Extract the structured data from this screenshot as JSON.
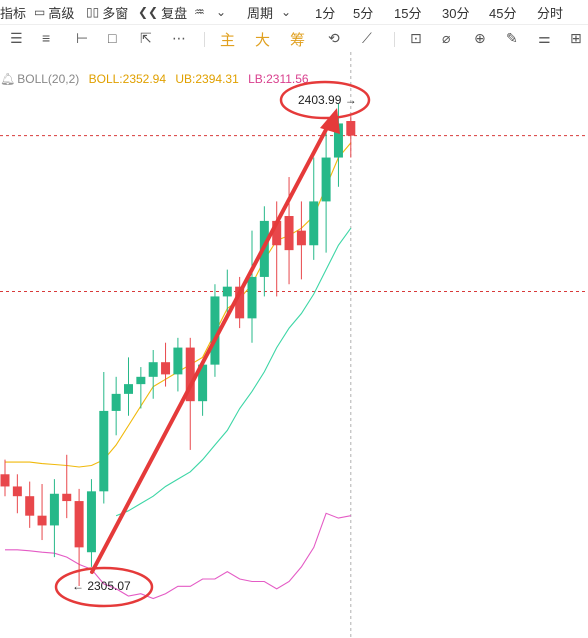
{
  "toolbar": {
    "items": [
      {
        "label": "指标",
        "icon": "",
        "icon_name": ""
      },
      {
        "label": "高级",
        "icon": "▭",
        "icon_name": "window-icon"
      },
      {
        "label": "多窗",
        "icon": "▯▯",
        "icon_name": "multi-window-icon"
      },
      {
        "label": "复盘",
        "icon": "❮❮",
        "icon_name": "rewind-icon"
      },
      {
        "label": "",
        "icon": "♒",
        "icon_name": "chart-type-icon"
      },
      {
        "label": "",
        "icon": "⌄",
        "icon_name": "chevron-down-icon"
      },
      {
        "label": "周期",
        "icon": "",
        "icon_name": ""
      },
      {
        "label": "",
        "icon": "⌄",
        "icon_name": "chevron-down-icon"
      },
      {
        "label": "1分",
        "icon": "",
        "icon_name": ""
      },
      {
        "label": "5分",
        "icon": "",
        "icon_name": ""
      },
      {
        "label": "15分",
        "icon": "",
        "icon_name": ""
      },
      {
        "label": "30分",
        "icon": "",
        "icon_name": ""
      },
      {
        "label": "45分",
        "icon": "",
        "icon_name": ""
      },
      {
        "label": "分时",
        "icon": "",
        "icon_name": ""
      }
    ],
    "draw_tools": {
      "tools": [
        {
          "glyph": "☰",
          "name": "menu-icon"
        },
        {
          "glyph": "≡",
          "name": "lines-icon"
        },
        {
          "glyph": "⊢",
          "name": "horizontal-line-icon"
        },
        {
          "glyph": "□",
          "name": "rectangle-icon"
        },
        {
          "glyph": "⇱",
          "name": "pointer-icon"
        },
        {
          "glyph": "⋯",
          "name": "more-icon"
        }
      ],
      "gold": [
        "主",
        "大",
        "筹"
      ],
      "right_tools": [
        {
          "glyph": "⟲",
          "name": "refresh-icon"
        },
        {
          "glyph": "⟋",
          "name": "ruler-icon"
        },
        {
          "glyph": "⊡",
          "name": "select-icon"
        },
        {
          "glyph": "⌀",
          "name": "measure-icon"
        },
        {
          "glyph": "⊕",
          "name": "zoom-icon"
        },
        {
          "glyph": "✎",
          "name": "pen-icon"
        },
        {
          "glyph": "⚌",
          "name": "candle-icon"
        },
        {
          "glyph": "⊞",
          "name": "grid-icon"
        }
      ]
    }
  },
  "legend": {
    "boll": "BOLL(20,2)",
    "mid": "BOLL:2352.94",
    "ub": "UB:2394.31",
    "lb": "LB:2311.56"
  },
  "annotations": {
    "high": "2403.99",
    "high_arrow": "→",
    "low": "2305.07",
    "low_arrow": "←"
  },
  "colors": {
    "up": "#26b889",
    "down": "#e8474b",
    "mid": "#f0b90b",
    "ub": "#3dd6a6",
    "lb": "#e45bc5",
    "annotation": "#e53a3a",
    "crosshair": "#d83a3a"
  },
  "chart_data": {
    "type": "candlestick",
    "title": "",
    "ylim": [
      2290,
      2420
    ],
    "candles": [
      {
        "o": 2328.0,
        "h": 2331.0,
        "l": 2323.5,
        "c": 2325.5
      },
      {
        "o": 2325.5,
        "h": 2328.0,
        "l": 2320.0,
        "c": 2323.5
      },
      {
        "o": 2323.5,
        "h": 2326.5,
        "l": 2317.0,
        "c": 2319.5
      },
      {
        "o": 2319.5,
        "h": 2326.0,
        "l": 2314.5,
        "c": 2317.5
      },
      {
        "o": 2317.5,
        "h": 2327.0,
        "l": 2311.0,
        "c": 2324.0
      },
      {
        "o": 2324.0,
        "h": 2332.0,
        "l": 2319.0,
        "c": 2322.5
      },
      {
        "o": 2322.5,
        "h": 2325.0,
        "l": 2305.07,
        "c": 2313.0
      },
      {
        "o": 2312.0,
        "h": 2327.0,
        "l": 2309.0,
        "c": 2324.5
      },
      {
        "o": 2324.5,
        "h": 2349.0,
        "l": 2322.0,
        "c": 2341.0
      },
      {
        "o": 2341.0,
        "h": 2348.0,
        "l": 2336.0,
        "c": 2344.5
      },
      {
        "o": 2344.5,
        "h": 2352.0,
        "l": 2340.0,
        "c": 2346.5
      },
      {
        "o": 2346.5,
        "h": 2350.0,
        "l": 2341.5,
        "c": 2348.0
      },
      {
        "o": 2348.0,
        "h": 2353.5,
        "l": 2343.5,
        "c": 2351.0
      },
      {
        "o": 2351.0,
        "h": 2355.0,
        "l": 2346.0,
        "c": 2348.5
      },
      {
        "o": 2348.5,
        "h": 2356.0,
        "l": 2345.0,
        "c": 2354.0
      },
      {
        "o": 2354.0,
        "h": 2356.0,
        "l": 2333.0,
        "c": 2343.0
      },
      {
        "o": 2343.0,
        "h": 2350.0,
        "l": 2340.0,
        "c": 2350.5
      },
      {
        "o": 2350.5,
        "h": 2367.0,
        "l": 2348.0,
        "c": 2364.5
      },
      {
        "o": 2364.5,
        "h": 2370.0,
        "l": 2361.0,
        "c": 2366.5
      },
      {
        "o": 2366.5,
        "h": 2368.5,
        "l": 2358.0,
        "c": 2360.0
      },
      {
        "o": 2360.0,
        "h": 2378.0,
        "l": 2355.0,
        "c": 2368.5
      },
      {
        "o": 2368.5,
        "h": 2383.0,
        "l": 2364.5,
        "c": 2380.0
      },
      {
        "o": 2380.0,
        "h": 2384.0,
        "l": 2364.5,
        "c": 2375.0
      },
      {
        "o": 2381.0,
        "h": 2389.0,
        "l": 2367.0,
        "c": 2374.0
      },
      {
        "o": 2378.0,
        "h": 2384.0,
        "l": 2368.0,
        "c": 2375.0
      },
      {
        "o": 2375.0,
        "h": 2393.0,
        "l": 2372.0,
        "c": 2384.0
      },
      {
        "o": 2384.0,
        "h": 2400.0,
        "l": 2373.5,
        "c": 2393.0
      },
      {
        "o": 2393.0,
        "h": 2403.99,
        "l": 2387.0,
        "c": 2400.0
      },
      {
        "o": 2400.5,
        "h": 2401.5,
        "l": 2393.0,
        "c": 2397.5
      }
    ],
    "mid": [
      2330.5,
      2330.5,
      2330.5,
      2330.2,
      2330.0,
      2329.8,
      2329.5,
      2329.8,
      2331.0,
      2334.0,
      2338.0,
      2342.0,
      2346.0,
      2347.5,
      2349.0,
      2350.5,
      2352.0,
      2357.0,
      2362.0,
      2364.0,
      2367.0,
      2372.0,
      2376.0,
      2377.0,
      2378.5,
      2381.0,
      2387.0,
      2393.0,
      2396.0
    ],
    "ub": [
      null,
      null,
      null,
      null,
      null,
      null,
      null,
      null,
      null,
      2319.5,
      2320.5,
      2322.0,
      2323.5,
      2325.5,
      2327.0,
      2328.5,
      2331.0,
      2334.0,
      2337.0,
      2341.5,
      2345.0,
      2349.0,
      2354.0,
      2358.0,
      2361.0,
      2365.0,
      2370.0,
      2375.0,
      2378.5
    ],
    "lb": [
      2312.5,
      2312.5,
      2312.3,
      2312.0,
      2311.8,
      2311.0,
      2309.5,
      2308.5,
      2305.5,
      2304.5,
      2303.0,
      2303.5,
      2302.5,
      2303.5,
      2305.0,
      2305.0,
      2306.5,
      2306.5,
      2308.0,
      2306.5,
      2306.0,
      2306.0,
      2304.5,
      2306.0,
      2309.0,
      2313.0,
      2320.0,
      2319.0,
      2319.5
    ],
    "horizontal_lines": [
      2397.5,
      2365.5
    ]
  }
}
